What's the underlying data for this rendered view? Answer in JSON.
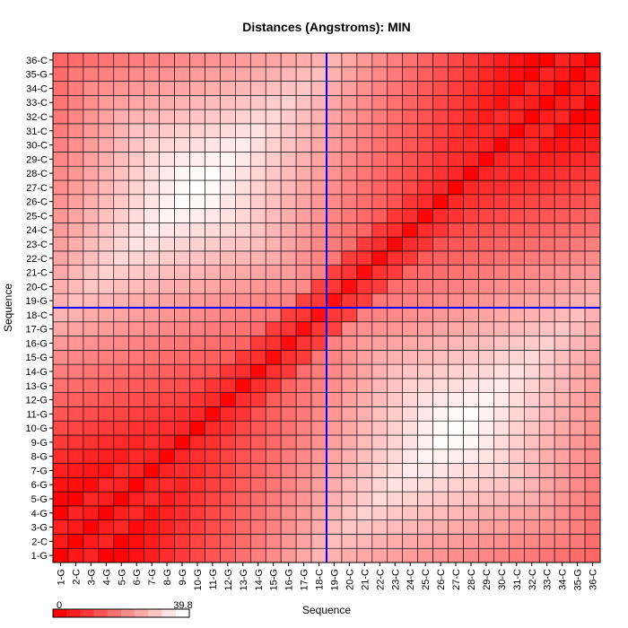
{
  "chart_data": {
    "type": "heatmap",
    "title": "Distances (Angstroms):  MIN",
    "xlabel": "Sequence",
    "ylabel": "Sequence",
    "labels": [
      "1-G",
      "2-C",
      "3-G",
      "4-G",
      "5-G",
      "6-G",
      "7-G",
      "8-G",
      "9-G",
      "10-G",
      "11-G",
      "12-G",
      "13-G",
      "14-G",
      "15-G",
      "16-G",
      "17-G",
      "18-C",
      "19-G",
      "20-C",
      "21-C",
      "22-C",
      "23-C",
      "24-C",
      "25-C",
      "26-C",
      "27-C",
      "28-C",
      "29-C",
      "30-C",
      "31-C",
      "32-C",
      "33-C",
      "34-C",
      "35-G",
      "36-C"
    ],
    "colorbar": {
      "min": 0,
      "max": 39.8,
      "min_label": "0",
      "max_label": "39.8",
      "low_color": "#ff0000",
      "high_color": "#ffffff"
    },
    "grid": true,
    "crosshair": {
      "x_between": [
        "18-C",
        "19-G"
      ],
      "y_between": [
        "18-C",
        "19-G"
      ],
      "color": "#0000ff"
    },
    "values_note_unused": ""
  }
}
